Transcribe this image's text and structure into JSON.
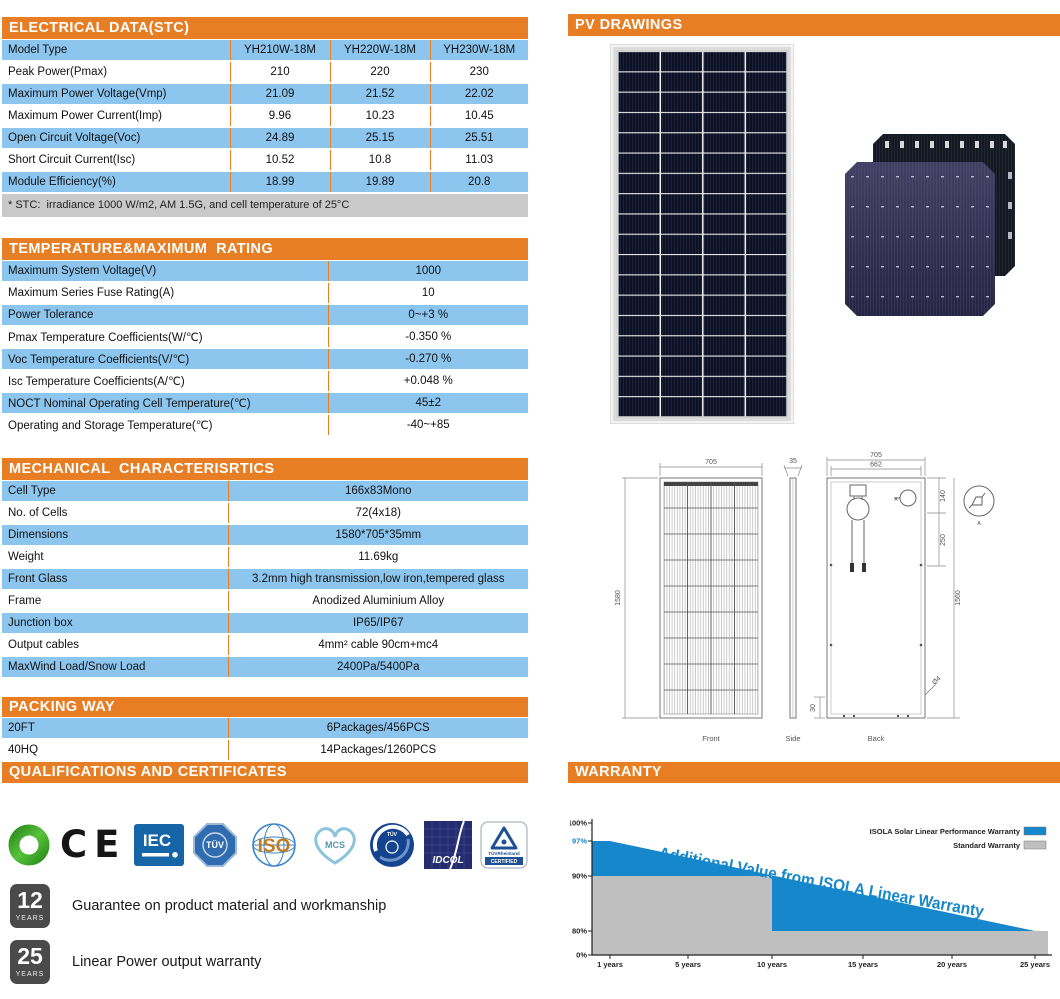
{
  "palette": {
    "header_orange": "#e87e24",
    "row_blue": "#8cc6ee",
    "footnote_gray": "#c9c9c9",
    "chart_blue": "#1787cb",
    "chart_gray": "#bfbfbf",
    "badge_gray": "#4a4a4a"
  },
  "electrical": {
    "title": "ELECTRICAL DATA(STC)",
    "rows": [
      [
        "Model Type",
        "YH210W-18M",
        "YH220W-18M",
        "YH230W-18M"
      ],
      [
        "Peak Power(Pmax)",
        "210",
        "220",
        "230"
      ],
      [
        "Maximum Power Voltage(Vmp)",
        "21.09",
        "21.52",
        "22.02"
      ],
      [
        "Maximum Power Current(Imp)",
        "9.96",
        "10.23",
        "10.45"
      ],
      [
        "Open Circuit Voltage(Voc)",
        "24.89",
        "25.15",
        "25.51"
      ],
      [
        "Short Circuit Current(Isc)",
        "10.52",
        "10.8",
        "11.03"
      ],
      [
        "Module Efficiency(%)",
        "18.99",
        "19.89",
        "20.8"
      ]
    ],
    "footnote": "* STC:  irradiance 1000 W/m2, AM 1.5G, and cell temperature of 25°C"
  },
  "temperature": {
    "title": "TEMPERATURE&MAXIMUM  RATING",
    "rows": [
      [
        "Maximum System Voltage(V)",
        "1000"
      ],
      [
        "Maximum Series Fuse Rating(A)",
        "10"
      ],
      [
        "Power Tolerance",
        "0~+3 %"
      ],
      [
        "Pmax Temperature Coefficients(W/℃)",
        "-0.350 %"
      ],
      [
        "Voc Temperature Coefficients(V/℃)",
        "-0.270 %"
      ],
      [
        "Isc Temperature Coefficients(A/℃)",
        "+0.048 %"
      ],
      [
        "NOCT Nominal Operating Cell Temperature(℃)",
        "45±2"
      ],
      [
        "Operating and Storage Temperature(℃)",
        "-40~+85"
      ]
    ]
  },
  "mechanical": {
    "title": "MECHANICAL  CHARACTERISRTICS",
    "rows": [
      [
        "Cell Type",
        "166x83Mono"
      ],
      [
        "No. of Cells",
        "72(4x18)"
      ],
      [
        "Dimensions",
        "1580*705*35mm"
      ],
      [
        "Weight",
        "11.69kg"
      ],
      [
        "Front Glass",
        "3.2mm high transmission,low iron,tempered glass"
      ],
      [
        "Frame",
        "Anodized Aluminium Alloy"
      ],
      [
        "Junction box",
        "IP65/IP67"
      ],
      [
        "Output cables",
        "4mm² cable 90cm+mc4"
      ],
      [
        "MaxWind Load/Snow Load",
        "2400Pa/5400Pa"
      ]
    ]
  },
  "packing": {
    "title": "PACKING WAY",
    "rows": [
      [
        "20FT",
        "6Packages/456PCS"
      ],
      [
        "40HQ",
        "14Packages/1260PCS"
      ]
    ]
  },
  "qualifications": {
    "title": "QUALIFICATIONS AND CERTIFICATES",
    "logo_labels": {
      "ce": "CE",
      "iec": "IEC",
      "tuv": "TÜV",
      "iso": "ISO",
      "mcs": "MCS",
      "idcol": "IDCOL",
      "tuv_rheinland": "TÜVRheinland",
      "certified": "CERTIFIED"
    }
  },
  "warranty_badges": [
    {
      "years": "12",
      "unit": "YEARS",
      "text": "Guarantee on product material and workmanship"
    },
    {
      "years": "25",
      "unit": "YEARS",
      "text": "Linear Power output warranty"
    }
  ],
  "pv_drawings": {
    "title": "PV DRAWINGS",
    "view_labels": [
      "Front",
      "Side",
      "Back"
    ],
    "dims": {
      "front_width": "705",
      "front_height": "1580",
      "side_thickness": "35",
      "back_width": "705",
      "back_inner_width": "662",
      "jbox_offset": "140",
      "cable_drop": "250",
      "back_height": "1560",
      "frame_bottom": "30",
      "hole": "Ø4",
      "detail": "A"
    }
  },
  "warranty_section": {
    "title": "WARRANTY"
  },
  "chart_data": {
    "type": "area",
    "title": "",
    "annotation": "Additional Value from ISOLA Linear Warranty",
    "x_ticks": [
      "1 years",
      "5 years",
      "10 years",
      "15 years",
      "20 years",
      "25 years"
    ],
    "y_ticks_display": [
      "100%",
      "97%",
      "90%",
      "80%",
      "0%"
    ],
    "xlabel": "",
    "ylabel": "",
    "ylim": [
      0,
      100
    ],
    "series": [
      {
        "name": "ISOLA Solar Linear Performance Warranty",
        "color": "#1787cb",
        "x_years": [
          1,
          25
        ],
        "values_pct": [
          97,
          80
        ],
        "shape": "linear_decline"
      },
      {
        "name": "Standard Warranty",
        "color": "#bfbfbf",
        "x_years": [
          0,
          10,
          10,
          25
        ],
        "values_pct": [
          90,
          90,
          80,
          80
        ],
        "shape": "step"
      }
    ],
    "legend_position": "top-right",
    "grid": false
  }
}
